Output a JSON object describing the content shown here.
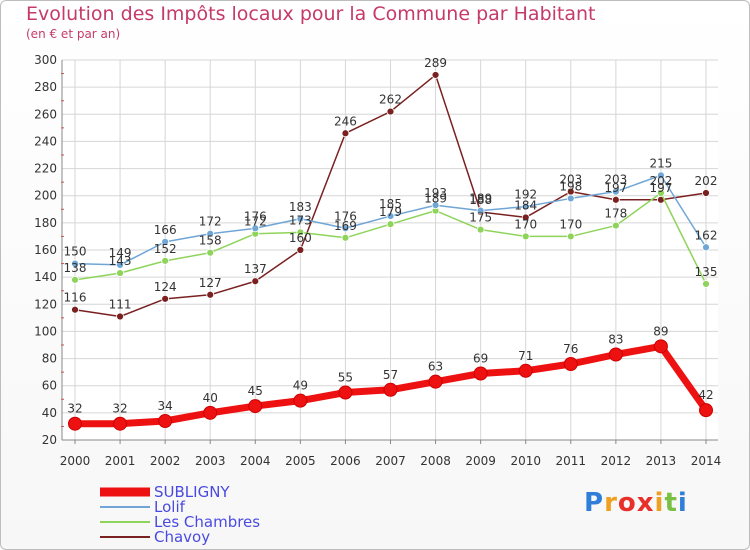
{
  "title": "Evolution des Impôts locaux pour la Commune par Habitant",
  "subtitle": "(en € et par an)",
  "logo": {
    "text": "Proxiti",
    "letters": [
      "P",
      "r",
      "o",
      "x",
      "i",
      "t",
      "i"
    ],
    "colors": [
      "#2f7fd8",
      "#f0a020",
      "#e8302a",
      "#e8302a",
      "#f0a020",
      "#7ac043",
      "#2f7fd8"
    ]
  },
  "chart_data": {
    "type": "line",
    "title": "Evolution des Impôts locaux pour la Commune par Habitant",
    "subtitle": "(en € et par an)",
    "xlabel": "",
    "ylabel": "",
    "x": [
      "2000",
      "2001",
      "2002",
      "2003",
      "2004",
      "2005",
      "2006",
      "2007",
      "2008",
      "2009",
      "2010",
      "2011",
      "2012",
      "2013",
      "2014"
    ],
    "ylim": [
      20,
      300
    ],
    "yticks": [
      "20",
      "40",
      "60",
      "80",
      "100",
      "120",
      "140",
      "160",
      "180",
      "200",
      "220",
      "240",
      "260",
      "280",
      "300"
    ],
    "grid": true,
    "legend_position": "bottom-left",
    "series": [
      {
        "name": "SUBLIGNY",
        "color": "#ee1111",
        "values": [
          32,
          32,
          34,
          40,
          45,
          49,
          55,
          57,
          63,
          69,
          71,
          76,
          83,
          89,
          42
        ],
        "labels": [
          "32",
          "32",
          "34",
          "40",
          "45",
          "49",
          "55",
          "57",
          "63",
          "69",
          "71",
          "76",
          "83",
          "89",
          "42"
        ]
      },
      {
        "name": "Lolif",
        "color": "#6fa6d6",
        "values": [
          150,
          149,
          166,
          172,
          176,
          183,
          176,
          185,
          193,
          189,
          192,
          198,
          203,
          215,
          162
        ],
        "labels": [
          "150",
          "149",
          "166",
          "172",
          "176",
          "183",
          "176",
          "185",
          "193",
          "189",
          "192",
          "198",
          "203",
          "215",
          "162"
        ]
      },
      {
        "name": "Les Chambres",
        "color": "#8ed45a",
        "values": [
          138,
          143,
          152,
          158,
          172,
          173,
          169,
          179,
          189,
          175,
          170,
          170,
          178,
          202,
          135
        ],
        "labels": [
          "138",
          "143",
          "152",
          "158",
          "172",
          "173",
          "169",
          "179",
          "189",
          "175",
          "170",
          "170",
          "178",
          "202",
          "135"
        ]
      },
      {
        "name": "Chavoy",
        "color": "#7a2020",
        "values": [
          116,
          111,
          124,
          127,
          137,
          160,
          246,
          262,
          289,
          188,
          184,
          203,
          197,
          197,
          202
        ],
        "labels": [
          "116",
          "111",
          "124",
          "127",
          "137",
          "160",
          "246",
          "262",
          "289",
          "188",
          "184",
          "203",
          "197",
          "197",
          "202"
        ]
      }
    ]
  }
}
